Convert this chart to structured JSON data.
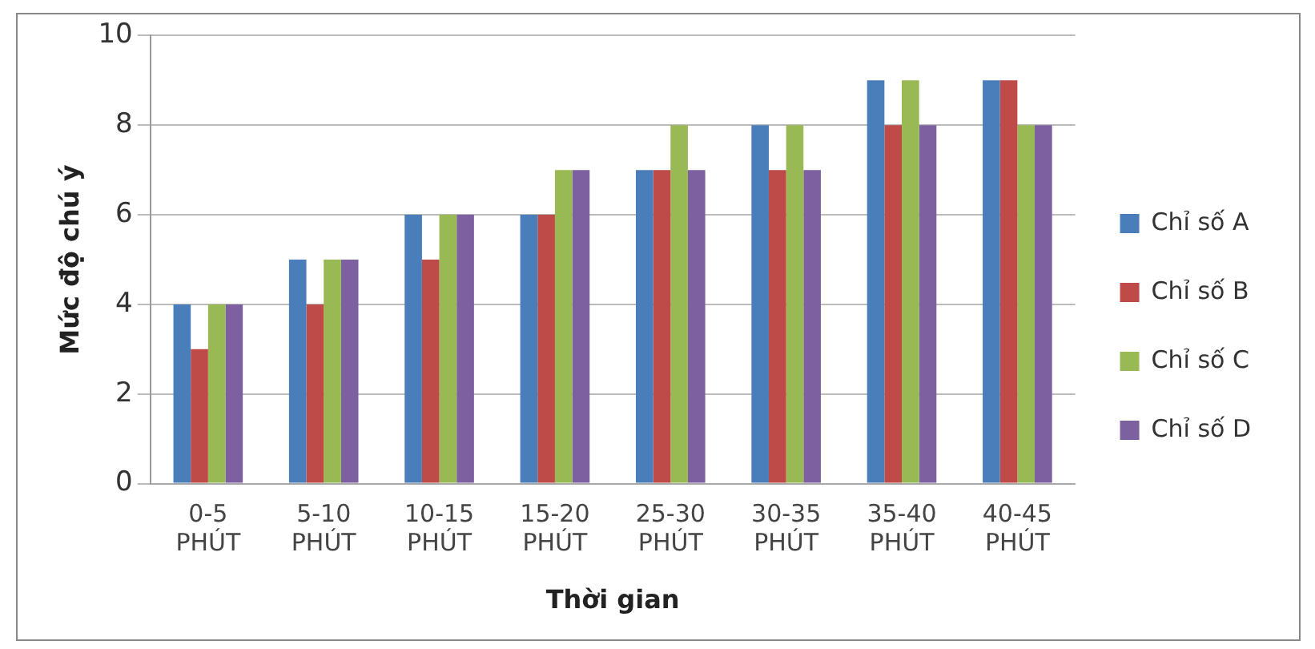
{
  "chart_data": {
    "type": "bar",
    "xlabel": "Thời gian",
    "ylabel": "Mức độ chú ý",
    "categories": [
      "0-5 PHÚT",
      "5-10 PHÚT",
      "10-15 PHÚT",
      "15-20 PHÚT",
      "25-30 PHÚT",
      "30-35 PHÚT",
      "35-40 PHÚT",
      "40-45 PHÚT"
    ],
    "series": [
      {
        "name": "Chỉ số A",
        "color": "#4a7ebb",
        "values": [
          4,
          5,
          6,
          6,
          7,
          8,
          9,
          9
        ]
      },
      {
        "name": "Chỉ số B",
        "color": "#be4b48",
        "values": [
          3,
          4,
          5,
          6,
          7,
          7,
          8,
          9
        ]
      },
      {
        "name": "Chỉ số C",
        "color": "#98b954",
        "values": [
          4,
          5,
          6,
          7,
          8,
          8,
          9,
          8
        ]
      },
      {
        "name": "Chỉ số D",
        "color": "#7d60a0",
        "values": [
          4,
          5,
          6,
          7,
          7,
          7,
          8,
          8
        ]
      }
    ],
    "ylim": [
      0,
      10
    ],
    "yticks": [
      0,
      2,
      4,
      6,
      8,
      10
    ],
    "grid": "y",
    "legend": "right"
  }
}
